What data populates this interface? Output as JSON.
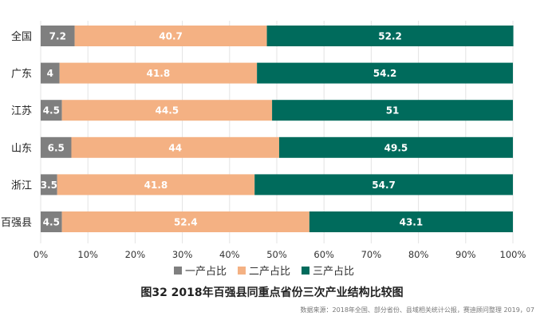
{
  "chart_data": {
    "type": "bar",
    "orientation": "horizontal",
    "stacked": true,
    "categories": [
      "全国",
      "广东",
      "江苏",
      "山东",
      "浙江",
      "百强县"
    ],
    "series": [
      {
        "name": "一产占比",
        "values": [
          7.2,
          4,
          4.5,
          6.5,
          3.5,
          4.5
        ],
        "color": "#7f7f7f"
      },
      {
        "name": "二产占比",
        "values": [
          40.7,
          41.8,
          44.5,
          44,
          41.8,
          52.4
        ],
        "color": "#f4b183"
      },
      {
        "name": "三产占比",
        "values": [
          52.2,
          54.2,
          51,
          49.5,
          54.7,
          43.1
        ],
        "color": "#006b5c"
      }
    ],
    "x_ticks": [
      "0%",
      "10%",
      "20%",
      "30%",
      "40%",
      "50%",
      "60%",
      "70%",
      "80%",
      "90%",
      "100%"
    ],
    "xlim": [
      0,
      100
    ],
    "grid": true,
    "legend_position": "bottom"
  },
  "caption": "图32 2018年百强县同重点省份三次产业结构比较图",
  "source": "数据来源：2018年全国、部分省份、县域相关统计公报，赛迪顾问整理 2019，07"
}
